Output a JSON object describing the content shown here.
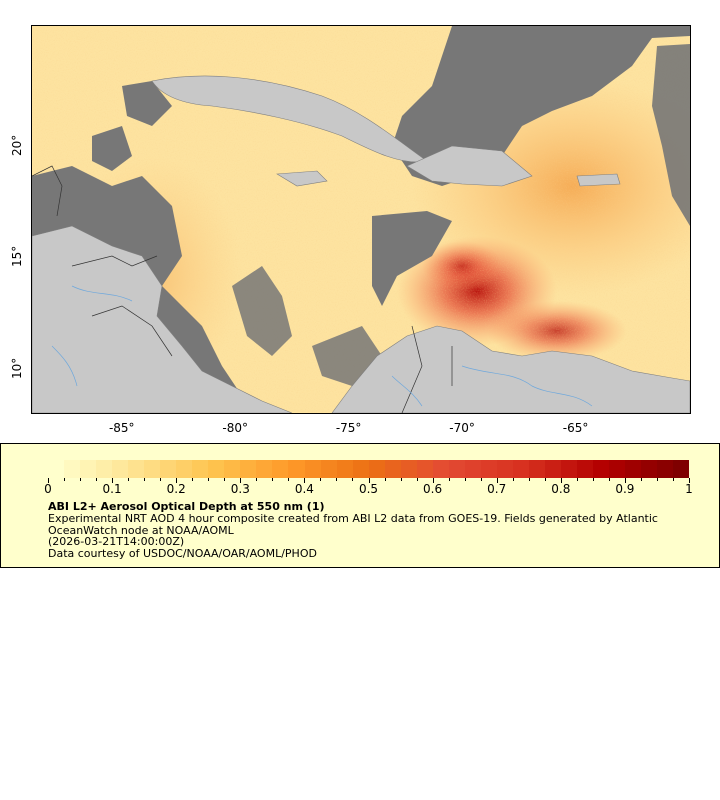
{
  "map": {
    "x_ticks": [
      {
        "value": -85,
        "label": "-85°"
      },
      {
        "value": -80,
        "label": "-80°"
      },
      {
        "value": -75,
        "label": "-75°"
      },
      {
        "value": -70,
        "label": "-70°"
      },
      {
        "value": -65,
        "label": "-65°"
      }
    ],
    "y_ticks": [
      {
        "value": 10,
        "label": "10°"
      },
      {
        "value": 15,
        "label": "15°"
      },
      {
        "value": 20,
        "label": "20°"
      }
    ],
    "lon_range": [
      -89,
      -60
    ],
    "lat_range": [
      8,
      25.3
    ],
    "colors": {
      "land": "#c8c8c8",
      "no_data": "#777777",
      "low_aod": "#fde9a6",
      "high_aod": "#d7301f"
    }
  },
  "legend": {
    "colorbar_ticks": [
      "0",
      "0.1",
      "0.2",
      "0.3",
      "0.4",
      "0.5",
      "0.6",
      "0.7",
      "0.8",
      "0.9",
      "1"
    ],
    "colorbar_range": [
      0,
      1
    ],
    "colorbar_colors": [
      "#ffffcc",
      "#fee391",
      "#fec44f",
      "#fe9929",
      "#ec7014",
      "#e34a33",
      "#d7301f",
      "#b30000",
      "#7f0000"
    ],
    "title": "ABI L2+ Aerosol Optical Depth at 550 nm (1)",
    "description": "Experimental NRT AOD 4 hour composite created from ABI L2 data from GOES-19. Fields generated by Atlantic OceanWatch node at NOAA/AOML",
    "date": "(2026-03-21T14:00:00Z)",
    "credit": "Data courtesy of USDOC/NOAA/OAR/AOML/PHOD"
  }
}
